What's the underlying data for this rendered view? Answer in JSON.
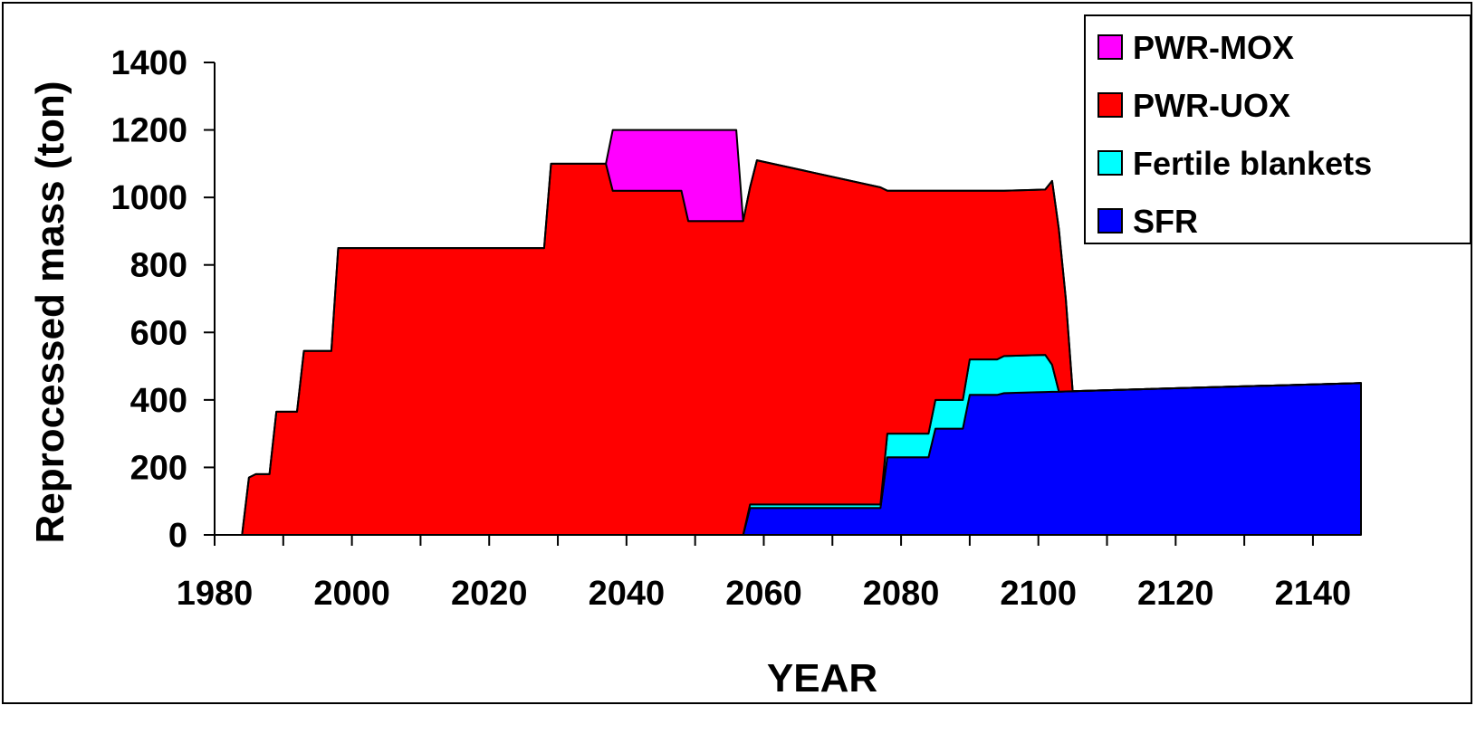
{
  "chart_data": {
    "type": "area",
    "title": "",
    "xlabel": "YEAR",
    "ylabel": "Reprocessed mass (ton)",
    "xlim": [
      1980,
      2147
    ],
    "ylim": [
      0,
      1400
    ],
    "xticks": [
      1980,
      2000,
      2020,
      2040,
      2060,
      2080,
      2100,
      2120,
      2140
    ],
    "yticks": [
      0,
      200,
      400,
      600,
      800,
      1000,
      1200,
      1400
    ],
    "stacked": true,
    "legend_position": "top-right",
    "series": [
      {
        "name": "SFR",
        "color": "#0000FF",
        "points": [
          [
            1980,
            0
          ],
          [
            2057,
            0
          ],
          [
            2058,
            80
          ],
          [
            2077,
            80
          ],
          [
            2078,
            230
          ],
          [
            2084,
            230
          ],
          [
            2085,
            315
          ],
          [
            2089,
            315
          ],
          [
            2090,
            415
          ],
          [
            2094,
            415
          ],
          [
            2095,
            420
          ],
          [
            2147,
            450
          ]
        ]
      },
      {
        "name": "Fertile blankets",
        "color": "#00FFFF",
        "points": [
          [
            1980,
            0
          ],
          [
            2057,
            0
          ],
          [
            2058,
            10
          ],
          [
            2077,
            10
          ],
          [
            2078,
            70
          ],
          [
            2084,
            70
          ],
          [
            2085,
            85
          ],
          [
            2089,
            85
          ],
          [
            2090,
            105
          ],
          [
            2094,
            105
          ],
          [
            2095,
            110
          ],
          [
            2101,
            110
          ],
          [
            2102,
            80
          ],
          [
            2103,
            0
          ],
          [
            2147,
            0
          ]
        ]
      },
      {
        "name": "PWR-UOX",
        "color": "#FF0000",
        "points": [
          [
            1980,
            0
          ],
          [
            1984,
            0
          ],
          [
            1985,
            170
          ],
          [
            1986,
            180
          ],
          [
            1988,
            180
          ],
          [
            1989,
            365
          ],
          [
            1992,
            365
          ],
          [
            1993,
            545
          ],
          [
            1997,
            545
          ],
          [
            1998,
            850
          ],
          [
            2028,
            850
          ],
          [
            2029,
            1100
          ],
          [
            2037,
            1100
          ],
          [
            2038,
            1020
          ],
          [
            2048,
            1020
          ],
          [
            2049,
            930
          ],
          [
            2057,
            930
          ],
          [
            2058,
            940
          ],
          [
            2059,
            1020
          ],
          [
            2077,
            940
          ],
          [
            2078,
            720
          ],
          [
            2084,
            720
          ],
          [
            2085,
            620
          ],
          [
            2089,
            620
          ],
          [
            2090,
            500
          ],
          [
            2094,
            500
          ],
          [
            2095,
            490
          ],
          [
            2101,
            490
          ],
          [
            2102,
            545
          ],
          [
            2103,
            480
          ],
          [
            2104,
            275
          ],
          [
            2105,
            0
          ],
          [
            2147,
            0
          ]
        ]
      },
      {
        "name": "PWR-MOX",
        "color": "#FF00FF",
        "points": [
          [
            1980,
            0
          ],
          [
            2036,
            0
          ],
          [
            2037,
            0
          ],
          [
            2038,
            180
          ],
          [
            2048,
            180
          ],
          [
            2049,
            270
          ],
          [
            2056,
            270
          ],
          [
            2057,
            0
          ],
          [
            2147,
            0
          ]
        ]
      }
    ]
  }
}
